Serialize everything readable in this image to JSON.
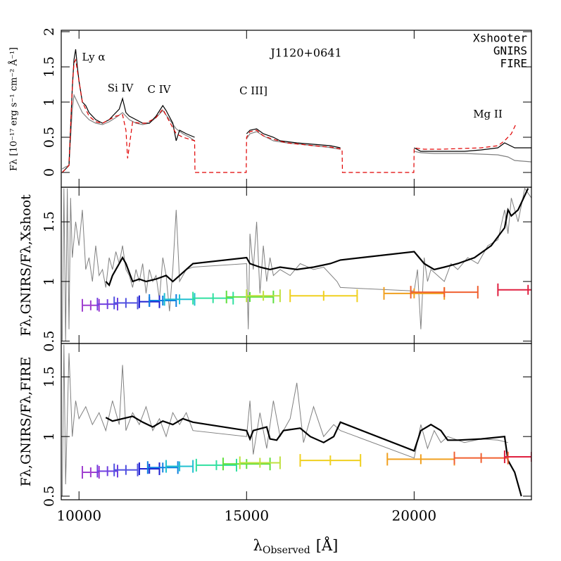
{
  "chart_data": [
    {
      "type": "line",
      "title": "J1120+0641",
      "ylabel": "Fλ [10⁻¹⁷ erg s⁻¹ cm⁻² Å⁻¹]",
      "annotations": [
        "Ly α",
        "Si IV",
        "C IV",
        "C III]",
        "Mg II"
      ],
      "xlim": [
        9470,
        23500
      ],
      "xticks": [
        10000,
        15000,
        20000
      ],
      "ylim": [
        -0.21,
        2.02
      ],
      "yticks": [
        0,
        0.5,
        1,
        1.5,
        2
      ],
      "legend": "top-right",
      "series": [
        {
          "name": "Xshooter",
          "color": "#808080",
          "linestyle": "solid",
          "linewidth": 1.2,
          "x": [
            9500,
            9600,
            9700,
            9800,
            9850,
            9900,
            10000,
            10100,
            10300,
            10500,
            10700,
            10900,
            11100,
            11300,
            11500,
            11700,
            11900,
            12100,
            12300,
            12500,
            12700,
            12900,
            13100,
            13300,
            13450,
            13500,
            15000,
            15100,
            15300,
            15500,
            15800,
            16200,
            16600,
            17000,
            17400,
            17800,
            17900,
            20000,
            20200,
            20600,
            21000,
            21500,
            22000,
            22500,
            22800,
            23000,
            23500
          ],
          "values": [
            0.05,
            0.08,
            0.1,
            0.9,
            1.1,
            1.05,
            0.95,
            0.85,
            0.75,
            0.7,
            0.68,
            0.72,
            0.78,
            0.85,
            0.75,
            0.7,
            0.68,
            0.7,
            0.78,
            0.88,
            0.75,
            0.62,
            0.55,
            0.5,
            0.45,
            null,
            0.48,
            0.55,
            0.58,
            0.52,
            0.45,
            0.42,
            0.4,
            0.38,
            0.36,
            0.33,
            null,
            0.3,
            0.28,
            0.27,
            0.27,
            0.27,
            0.26,
            0.25,
            0.22,
            0.17,
            0.15
          ]
        },
        {
          "name": "GNIRS",
          "color": "#000000",
          "linestyle": "solid",
          "linewidth": 1.2,
          "x": [
            9500,
            9600,
            9700,
            9800,
            9850,
            9900,
            9950,
            10000,
            10100,
            10200,
            10300,
            10500,
            10700,
            10900,
            11000,
            11200,
            11300,
            11400,
            11500,
            11700,
            11900,
            12100,
            12300,
            12500,
            12600,
            12800,
            12900,
            13000,
            13200,
            13450,
            13500,
            15000,
            15100,
            15300,
            15500,
            15800,
            16000,
            16500,
            17000,
            17500,
            17800,
            17900,
            20000,
            20200,
            20500,
            21000,
            21500,
            22000,
            22500,
            22700,
            23000,
            23500
          ],
          "values": [
            0.0,
            0.05,
            0.1,
            1.2,
            1.6,
            1.75,
            1.5,
            1.3,
            1.0,
            0.95,
            0.85,
            0.75,
            0.7,
            0.75,
            0.8,
            0.9,
            1.05,
            0.85,
            0.8,
            0.75,
            0.7,
            0.7,
            0.8,
            0.95,
            0.88,
            0.7,
            0.45,
            0.6,
            0.55,
            0.5,
            null,
            0.55,
            0.6,
            0.62,
            0.55,
            0.5,
            0.45,
            0.42,
            0.4,
            0.38,
            0.35,
            null,
            0.35,
            0.3,
            0.3,
            0.3,
            0.3,
            0.32,
            0.35,
            0.42,
            0.35,
            0.35
          ]
        },
        {
          "name": "FIRE",
          "color": "#e00000",
          "linestyle": "dashed",
          "linewidth": 1.2,
          "x": [
            9500,
            9600,
            9700,
            9800,
            9850,
            9900,
            10000,
            10100,
            10300,
            10500,
            10700,
            10900,
            11100,
            11300,
            11400,
            11450,
            11600,
            11800,
            12000,
            12300,
            12500,
            12700,
            12900,
            13100,
            13450,
            13460,
            14990,
            15000,
            15100,
            15300,
            15500,
            15800,
            16200,
            16600,
            17000,
            17500,
            17850,
            17860,
            19990,
            20000,
            20300,
            20800,
            21400,
            22000,
            22500,
            22700,
            22900,
            23050
          ],
          "values": [
            0.0,
            0.05,
            0.1,
            1.2,
            1.55,
            1.6,
            1.3,
            1.0,
            0.8,
            0.72,
            0.7,
            0.75,
            0.8,
            0.82,
            0.6,
            0.2,
            0.72,
            0.7,
            0.7,
            0.78,
            0.9,
            0.72,
            0.55,
            0.5,
            0.45,
            0.0,
            0.0,
            0.5,
            0.58,
            0.6,
            0.52,
            0.47,
            0.42,
            0.4,
            0.38,
            0.36,
            0.33,
            0.0,
            0.0,
            0.35,
            0.33,
            0.33,
            0.34,
            0.35,
            0.38,
            0.45,
            0.55,
            0.7
          ]
        }
      ]
    },
    {
      "type": "line",
      "ylabel": "Fλ,GNIRS/Fλ,Xshoot",
      "xlim": [
        9470,
        23500
      ],
      "xticks": [
        10000,
        15000,
        20000
      ],
      "ylim": [
        0.48,
        1.79
      ],
      "yticks": [
        0.5,
        1,
        1.5
      ],
      "series": [
        {
          "color": "#808080",
          "linestyle": "solid",
          "linewidth": 1,
          "x": [
            9500,
            9550,
            9600,
            9650,
            9700,
            9750,
            9800,
            9900,
            10000,
            10100,
            10200,
            10300,
            10400,
            10500,
            10600,
            10700,
            10800,
            10900,
            11000,
            11100,
            11200,
            11300,
            11400,
            11500,
            11600,
            11700,
            11800,
            11900,
            12000,
            12100,
            12200,
            12300,
            12400,
            12500,
            12600,
            12700,
            12800,
            12900,
            13000,
            13200,
            13400,
            15000,
            15050,
            15100,
            15200,
            15300,
            15400,
            15500,
            15600,
            15700,
            15800,
            16000,
            16300,
            16600,
            17000,
            17300,
            17700,
            17800,
            20000,
            20100,
            20200,
            20300,
            20400,
            20500,
            20700,
            20900,
            21100,
            21300,
            21600,
            21900,
            22200,
            22500,
            22700,
            22800,
            22900,
            23100,
            23300,
            23500
          ],
          "values": [
            0.5,
            1.78,
            0.5,
            1.78,
            0.6,
            1.7,
            1.2,
            1.5,
            1.3,
            1.6,
            1.1,
            1.2,
            1.0,
            1.3,
            1.05,
            1.1,
            0.95,
            1.2,
            1.1,
            1.25,
            1.15,
            1.3,
            1.1,
            1.05,
            0.95,
            1.1,
            1.0,
            1.15,
            0.9,
            1.1,
            1.0,
            1.05,
            0.85,
            1.2,
            1.05,
            0.75,
            1.1,
            1.6,
            1.0,
            1.1,
            1.12,
            1.15,
            0.6,
            1.4,
            1.1,
            1.5,
            0.9,
            1.3,
            1.0,
            1.2,
            1.05,
            1.1,
            1.05,
            1.15,
            1.1,
            1.12,
            1.0,
            0.95,
            0.92,
            1.1,
            0.6,
            1.2,
            1.0,
            1.1,
            1.05,
            1.0,
            1.15,
            1.1,
            1.2,
            1.15,
            1.3,
            1.35,
            1.6,
            1.4,
            1.7,
            1.5,
            1.78,
            1.7
          ]
        },
        {
          "color": "#000000",
          "linestyle": "solid",
          "linewidth": 2.2,
          "x": [
            10800,
            10900,
            11000,
            11200,
            11300,
            11400,
            11600,
            11800,
            12000,
            12300,
            12600,
            12800,
            13000,
            13200,
            13400,
            15000,
            15100,
            15400,
            15700,
            16000,
            16500,
            17000,
            17500,
            17800,
            20000,
            20300,
            20600,
            20900,
            21300,
            21800,
            22300,
            22700,
            22800,
            22900,
            23100,
            23400
          ],
          "values": [
            1.0,
            0.97,
            1.05,
            1.15,
            1.2,
            1.15,
            1.0,
            1.02,
            1.0,
            1.02,
            1.05,
            1.0,
            1.05,
            1.1,
            1.15,
            1.2,
            1.15,
            1.12,
            1.1,
            1.12,
            1.1,
            1.12,
            1.15,
            1.18,
            1.25,
            1.15,
            1.1,
            1.12,
            1.15,
            1.2,
            1.3,
            1.45,
            1.6,
            1.55,
            1.6,
            1.78
          ]
        }
      ],
      "errorbars": {
        "x": [
          10350,
          10850,
          11400,
          12100,
          12500,
          13000,
          14000,
          15100,
          15500,
          17300,
          20000,
          20900,
          23400
        ],
        "xerr": [
          250,
          300,
          350,
          300,
          400,
          450,
          600,
          700,
          500,
          1000,
          900,
          1000,
          900
        ],
        "values": [
          0.8,
          0.81,
          0.82,
          0.83,
          0.84,
          0.85,
          0.86,
          0.87,
          0.88,
          0.88,
          0.9,
          0.91,
          0.93
        ],
        "colors": [
          "#a040d0",
          "#7040e0",
          "#5050e0",
          "#2020d0",
          "#1080e0",
          "#20c0d0",
          "#30e0a0",
          "#60e040",
          "#c0e040",
          "#f0d020",
          "#f0a020",
          "#f06030",
          "#e02040"
        ]
      }
    },
    {
      "type": "line",
      "ylabel": "Fλ,GNIRS/Fλ,FIRE",
      "xlabel": [
        "λ",
        "Observed",
        "[Å]"
      ],
      "xlim": [
        9470,
        23500
      ],
      "xticks": [
        10000,
        15000,
        20000
      ],
      "ylim": [
        0.47,
        1.78
      ],
      "yticks": [
        0.5,
        1,
        1.5
      ],
      "series": [
        {
          "color": "#808080",
          "linestyle": "solid",
          "linewidth": 1,
          "x": [
            9500,
            9550,
            9600,
            9700,
            9800,
            9900,
            10000,
            10200,
            10400,
            10600,
            10800,
            11000,
            11200,
            11300,
            11400,
            11600,
            11800,
            12000,
            12200,
            12400,
            12600,
            12800,
            13000,
            13200,
            13400,
            15000,
            15100,
            15200,
            15400,
            15600,
            15800,
            16000,
            16300,
            16500,
            16700,
            17000,
            17300,
            17600,
            17800,
            20000,
            20200,
            20400,
            20600,
            20800,
            21000,
            21500,
            22000,
            22500,
            22800
          ],
          "values": [
            0.5,
            1.77,
            0.6,
            1.7,
            1.0,
            1.3,
            1.15,
            1.25,
            1.1,
            1.2,
            1.05,
            1.3,
            1.1,
            1.6,
            1.05,
            1.2,
            1.1,
            1.25,
            1.05,
            1.15,
            1.0,
            1.2,
            1.1,
            1.2,
            1.05,
            1.0,
            1.3,
            0.85,
            1.2,
            0.9,
            1.3,
            1.0,
            1.15,
            1.45,
            0.95,
            1.25,
            1.0,
            1.1,
            1.05,
            0.82,
            1.1,
            0.9,
            1.05,
            0.95,
            1.0,
            0.95,
            0.98,
            0.97,
            0.95
          ]
        },
        {
          "color": "#000000",
          "linestyle": "solid",
          "linewidth": 2.2,
          "x": [
            10800,
            11000,
            11300,
            11600,
            11900,
            12200,
            12500,
            12800,
            13100,
            13400,
            15000,
            15100,
            15200,
            15600,
            15700,
            15900,
            16100,
            16600,
            16900,
            17300,
            17600,
            17800,
            20000,
            20200,
            20500,
            20800,
            21000,
            21300,
            22000,
            22700,
            22800,
            23000,
            23200
          ],
          "values": [
            1.16,
            1.13,
            1.15,
            1.17,
            1.12,
            1.08,
            1.13,
            1.1,
            1.15,
            1.12,
            1.05,
            0.98,
            1.05,
            1.08,
            0.98,
            0.97,
            1.05,
            1.07,
            1.0,
            0.95,
            1.0,
            1.12,
            0.88,
            1.05,
            1.1,
            1.05,
            0.97,
            0.97,
            0.98,
            1.0,
            0.8,
            0.7,
            0.5
          ]
        }
      ],
      "errorbars": {
        "x": [
          10350,
          10850,
          11400,
          12100,
          12500,
          13000,
          14100,
          15000,
          15400,
          17500,
          20200,
          22000,
          23500
        ],
        "xerr": [
          250,
          300,
          350,
          300,
          450,
          400,
          600,
          700,
          600,
          900,
          1000,
          800,
          800
        ],
        "values": [
          0.7,
          0.71,
          0.72,
          0.73,
          0.74,
          0.75,
          0.76,
          0.77,
          0.78,
          0.8,
          0.81,
          0.82,
          0.83
        ],
        "colors": [
          "#a040d0",
          "#7040e0",
          "#5050e0",
          "#2020d0",
          "#1080e0",
          "#20c0d0",
          "#30e0a0",
          "#60e040",
          "#c0e040",
          "#f0d020",
          "#f0a020",
          "#f06030",
          "#e02040"
        ]
      }
    }
  ]
}
